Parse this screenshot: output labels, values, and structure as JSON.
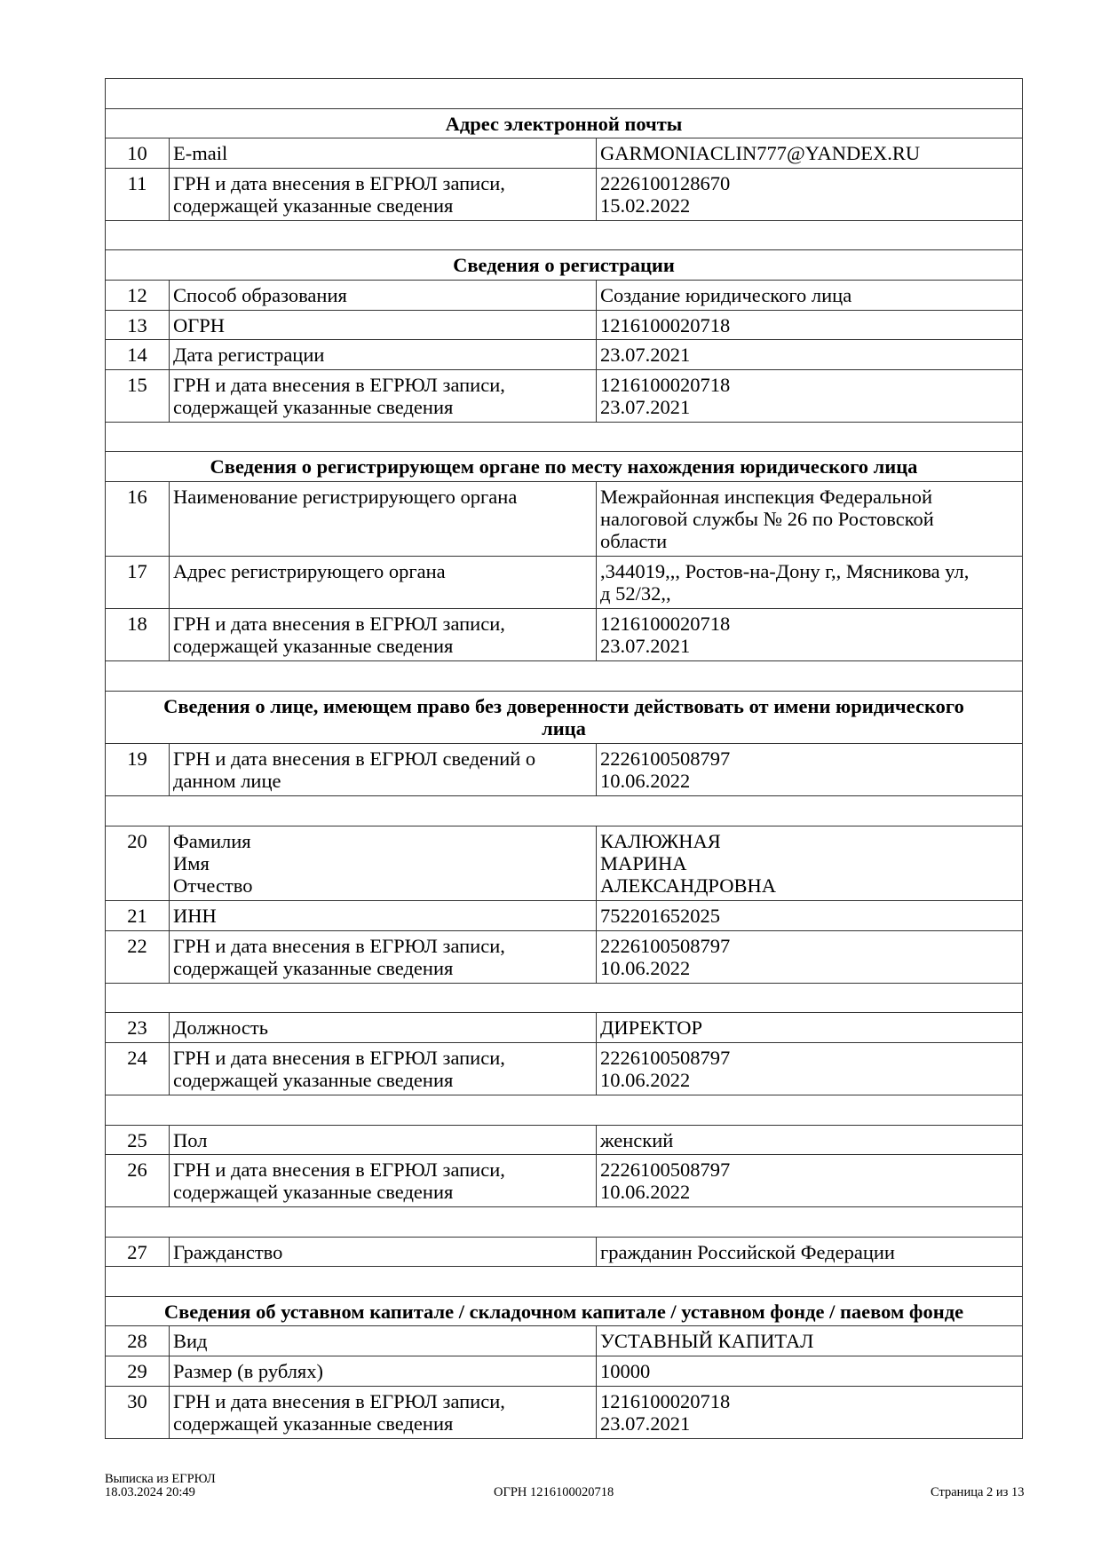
{
  "rows": [
    {
      "type": "blank"
    },
    {
      "type": "section",
      "text": "Адрес электронной почты"
    },
    {
      "type": "item",
      "num": "10",
      "label": "E-mail",
      "value": "GARMONIACLIN777@YANDEX.RU"
    },
    {
      "type": "item",
      "num": "11",
      "label": "ГРН и дата внесения в ЕГРЮЛ записи,\nсодержащей указанные сведения",
      "value": "2226100128670\n15.02.2022"
    },
    {
      "type": "blank"
    },
    {
      "type": "section",
      "text": "Сведения о регистрации"
    },
    {
      "type": "item",
      "num": "12",
      "label": "Способ образования",
      "value": "Создание юридического лица"
    },
    {
      "type": "item",
      "num": "13",
      "label": "ОГРН",
      "value": "1216100020718"
    },
    {
      "type": "item",
      "num": "14",
      "label": "Дата регистрации",
      "value": "23.07.2021"
    },
    {
      "type": "item",
      "num": "15",
      "label": "ГРН и дата внесения в ЕГРЮЛ записи,\nсодержащей указанные сведения",
      "value": "1216100020718\n23.07.2021"
    },
    {
      "type": "blank"
    },
    {
      "type": "section",
      "text": "Сведения о регистрирующем органе по месту нахождения юридического лица"
    },
    {
      "type": "item",
      "num": "16",
      "label": "Наименование регистрирующего органа",
      "value": "Межрайонная инспекция Федеральной\nналоговой службы № 26 по Ростовской\nобласти",
      "h": 3
    },
    {
      "type": "item",
      "num": "17",
      "label": "Адрес регистрирующего органа",
      "value": ",344019,,, Ростов-на-Дону г,, Мясникова ул,\nд 52/32,,"
    },
    {
      "type": "item",
      "num": "18",
      "label": "ГРН и дата внесения в ЕГРЮЛ записи,\nсодержащей указанные сведения",
      "value": "1216100020718\n23.07.2021"
    },
    {
      "type": "blank"
    },
    {
      "type": "section",
      "text": "Сведения о лице, имеющем право без доверенности действовать от имени юридического\nлица",
      "h": 2
    },
    {
      "type": "item",
      "num": "19",
      "label": "ГРН и дата внесения в ЕГРЮЛ сведений о\nданном лице",
      "value": "2226100508797\n10.06.2022"
    },
    {
      "type": "blank"
    },
    {
      "type": "item",
      "num": "20",
      "label": "Фамилия\nИмя\nОтчество",
      "value": "КАЛЮЖНАЯ\nМАРИНА\nАЛЕКСАНДРОВНА",
      "h": 3
    },
    {
      "type": "item",
      "num": "21",
      "label": "ИНН",
      "value": "752201652025"
    },
    {
      "type": "item",
      "num": "22",
      "label": "ГРН и дата внесения в ЕГРЮЛ записи,\nсодержащей указанные сведения",
      "value": "2226100508797\n10.06.2022"
    },
    {
      "type": "blank"
    },
    {
      "type": "item",
      "num": "23",
      "label": "Должность",
      "value": "ДИРЕКТОР"
    },
    {
      "type": "item",
      "num": "24",
      "label": "ГРН и дата внесения в ЕГРЮЛ записи,\nсодержащей указанные сведения",
      "value": "2226100508797\n10.06.2022"
    },
    {
      "type": "blank"
    },
    {
      "type": "item",
      "num": "25",
      "label": "Пол",
      "value": "женский"
    },
    {
      "type": "item",
      "num": "26",
      "label": "ГРН и дата внесения в ЕГРЮЛ записи,\nсодержащей указанные сведения",
      "value": "2226100508797\n10.06.2022"
    },
    {
      "type": "blank"
    },
    {
      "type": "item",
      "num": "27",
      "label": "Гражданство",
      "value": "гражданин Российской Федерации"
    },
    {
      "type": "blank"
    },
    {
      "type": "section",
      "text": "Сведения об уставном капитале / складочном капитале / уставном фонде / паевом фонде"
    },
    {
      "type": "item",
      "num": "28",
      "label": "Вид",
      "value": "УСТАВНЫЙ КАПИТАЛ"
    },
    {
      "type": "item",
      "num": "29",
      "label": "Размер (в рублях)",
      "value": "10000"
    },
    {
      "type": "item",
      "num": "30",
      "label": "ГРН и дата внесения в ЕГРЮЛ записи,\nсодержащей указанные сведения",
      "value": "1216100020718\n23.07.2021"
    }
  ],
  "footer": {
    "title": "Выписка из ЕГРЮЛ",
    "datetime": "18.03.2024 20:49",
    "ogrn": "ОГРН 1216100020718",
    "page": "Страница 2 из 13"
  }
}
